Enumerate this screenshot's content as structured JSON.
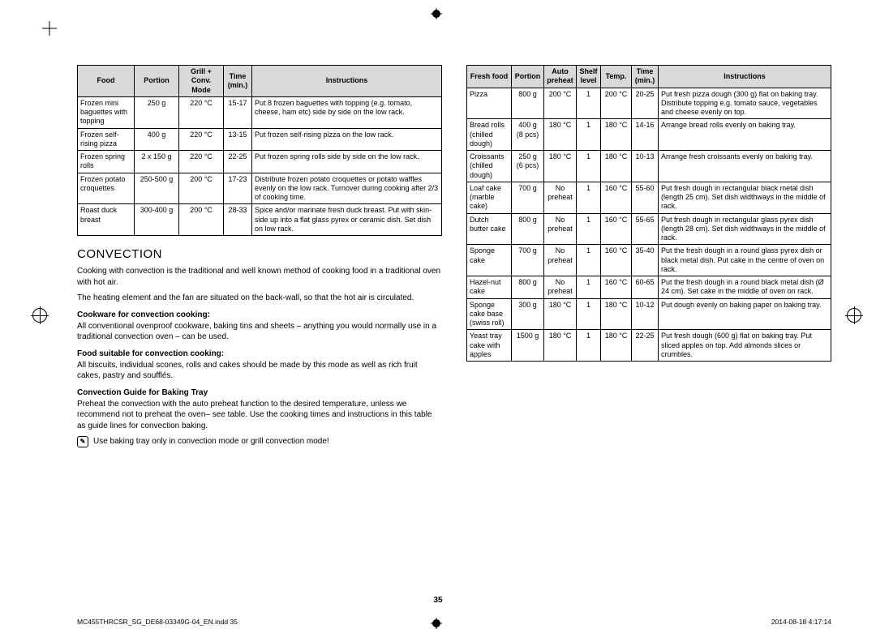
{
  "page_number": "35",
  "footer_left": "MC455THRCSR_SG_DE68-03349G-04_EN.indd   35",
  "footer_right": "2014-08-18   4:17:14",
  "table1": {
    "headers": [
      "Food",
      "Portion",
      "Grill + Conv. Mode",
      "Time (min.)",
      "Instructions"
    ],
    "rows": [
      [
        "Frozen mini baguettes with topping",
        "250 g",
        "220 °C",
        "15-17",
        "Put 8 frozen baguettes with topping (e.g. tomato, cheese, ham etc) side by side on the low rack."
      ],
      [
        "Frozen self-rising pizza",
        "400 g",
        "220 °C",
        "13-15",
        "Put frozen self-rising pizza on the low rack."
      ],
      [
        "Frozen spring rolls",
        "2 x 150 g",
        "220 °C",
        "22-25",
        "Put frozen spring rolls side by side on the low rack."
      ],
      [
        "Frozen potato croquettes",
        "250-500 g",
        "200 °C",
        "17-23",
        "Distribute frozen potato croquettes or potato waffles evenly on the low rack. Turnover during cooking after 2/3 of cooking time."
      ],
      [
        "Roast duck breast",
        "300-400 g",
        "200 °C",
        "28-33",
        "Spice and/or marinate fresh duck breast. Put with skin-side up into a flat glass pyrex or ceramic dish.\nSet dish on low rack."
      ]
    ]
  },
  "section_title": "CONVECTION",
  "para1": "Cooking with convection is the traditional and well known method of cooking food in a traditional oven with hot air.",
  "para2": "The heating element and the fan are situated on the back-wall, so that the hot air is circulated.",
  "sub1": "Cookware for convection cooking:",
  "sub1_body": "All conventional ovenproof cookware, baking tins and sheets – anything you would normally use in a traditional convection oven – can be used.",
  "sub2": "Food suitable for convection cooking:",
  "sub2_body": "All biscuits, individual scones, rolls and cakes should be made by this mode as well as rich fruit cakes, pastry and soufflés.",
  "sub3": "Convection Guide for Baking Tray",
  "sub3_body": "Preheat the convection with the auto preheat function to the desired temperature, unless we recommend not to preheat the oven– see table. Use the cooking times and instructions in this table as guide lines for convection baking.",
  "note_text": "Use baking tray only in convection mode or grill convection mode!",
  "table2": {
    "headers": [
      "Fresh food",
      "Portion",
      "Auto preheat",
      "Shelf level",
      "Temp.",
      "Time (min.)",
      "Instructions"
    ],
    "rows": [
      [
        "Pizza",
        "800 g",
        "200 °C",
        "1",
        "200 °C",
        "20-25",
        "Put fresh pizza dough (300 g) flat on baking tray. Distribute topping e.g. tomato sauce, vegetables and cheese evenly on top."
      ],
      [
        "Bread rolls (chilled dough)",
        "400 g (8 pcs)",
        "180 °C",
        "1",
        "180 °C",
        "14-16",
        "Arrange bread rolls evenly on baking tray."
      ],
      [
        "Croissants (chilled dough)",
        "250 g (6 pcs)",
        "180 °C",
        "1",
        "180 °C",
        "10-13",
        "Arrange fresh croissants evenly on baking tray."
      ],
      [
        "Loaf cake (marble cake)",
        "700 g",
        "No preheat",
        "1",
        "160 °C",
        "55-60",
        "Put fresh dough in rectangular black metal dish (length 25 cm). Set dish widthways in the middle of rack."
      ],
      [
        "Dutch butter cake",
        "800 g",
        "No preheat",
        "1",
        "160 °C",
        "55-65",
        "Put fresh dough in rectangular glass pyrex dish (length 28 cm). Set dish widthways in the middle of rack."
      ],
      [
        "Sponge cake",
        "700 g",
        "No preheat",
        "1",
        "160 °C",
        "35-40",
        "Put the fresh dough in a round glass pyrex dish or black metal dish. Put cake in the centre of oven on rack."
      ],
      [
        "Hazel-nut cake",
        "800 g",
        "No preheat",
        "1",
        "160 °C",
        "60-65",
        "Put the fresh dough in a round black metal dish (Ø 24 cm). Set cake in the middle of oven on rack."
      ],
      [
        "Sponge cake base (swiss roll)",
        "300 g",
        "180 °C",
        "1",
        "180 °C",
        "10-12",
        "Put dough evenly on baking paper on baking tray."
      ],
      [
        "Yeast tray cake with apples",
        "1500 g",
        "180 °C",
        "1",
        "180 °C",
        "22-25",
        "Put fresh dough (600 g) flat on baking tray. Put sliced apples on top. Add almonds slices or crumbles."
      ]
    ]
  },
  "col_widths": {
    "t1": [
      "70px",
      "55px",
      "55px",
      "35px",
      "auto"
    ],
    "t2": [
      "55px",
      "40px",
      "40px",
      "30px",
      "38px",
      "33px",
      "auto"
    ]
  },
  "colors": {
    "header_bg": "#d9d9d9",
    "border": "#000000",
    "text": "#000000"
  }
}
